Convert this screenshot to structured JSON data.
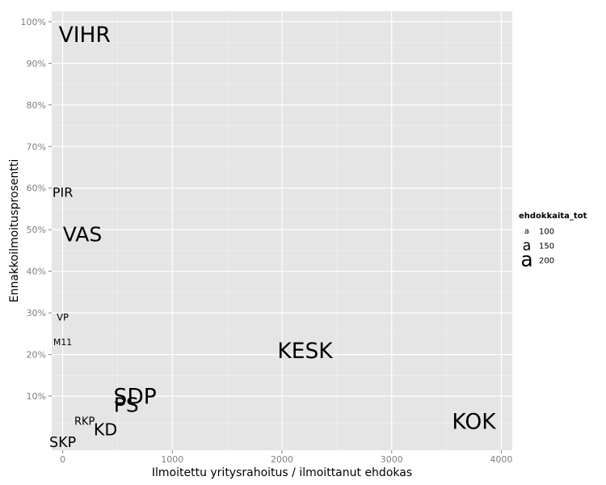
{
  "chart_data": {
    "type": "scatter",
    "title": "",
    "xlabel": "Ilmoitettu yritysrahoitus / ilmoittanut ehdokas",
    "ylabel": "Ennakkoilmoitusprosentti",
    "xlim": [
      -100,
      4100
    ],
    "ylim": [
      -0.03,
      1.025
    ],
    "x_ticks": [
      0,
      1000,
      2000,
      3000,
      4000
    ],
    "x_tick_labels": [
      "0",
      "1000",
      "2000",
      "3000",
      "4000"
    ],
    "y_ticks": [
      0.1,
      0.2,
      0.3,
      0.4,
      0.5,
      0.6,
      0.7,
      0.8,
      0.9,
      1.0
    ],
    "y_tick_labels": [
      "10%",
      "20%",
      "30%",
      "40%",
      "50%",
      "60%",
      "70%",
      "80%",
      "90%",
      "100%"
    ],
    "grid": true,
    "legend": {
      "title": "ehdokkaita_tot",
      "position": "right",
      "entries": [
        {
          "glyph": "a",
          "label": "100",
          "size": 100
        },
        {
          "glyph": "a",
          "label": "150",
          "size": 150
        },
        {
          "glyph": "a",
          "label": "200",
          "size": 200
        }
      ]
    },
    "points": [
      {
        "label": "VIHR",
        "x": 200,
        "y": 0.97,
        "size": 210
      },
      {
        "label": "PIR",
        "x": 0,
        "y": 0.59,
        "size": 140
      },
      {
        "label": "VAS",
        "x": 180,
        "y": 0.49,
        "size": 200
      },
      {
        "label": "VP",
        "x": 0,
        "y": 0.29,
        "size": 110
      },
      {
        "label": "M11",
        "x": 0,
        "y": 0.23,
        "size": 105
      },
      {
        "label": "KESK",
        "x": 2210,
        "y": 0.21,
        "size": 210
      },
      {
        "label": "SDP",
        "x": 660,
        "y": 0.1,
        "size": 210
      },
      {
        "label": "PS",
        "x": 580,
        "y": 0.08,
        "size": 200
      },
      {
        "label": "RKP",
        "x": 200,
        "y": 0.04,
        "size": 120
      },
      {
        "label": "KD",
        "x": 390,
        "y": 0.02,
        "size": 170
      },
      {
        "label": "SKP",
        "x": 0,
        "y": -0.01,
        "size": 150
      },
      {
        "label": "KOK",
        "x": 3750,
        "y": 0.04,
        "size": 210
      }
    ]
  }
}
